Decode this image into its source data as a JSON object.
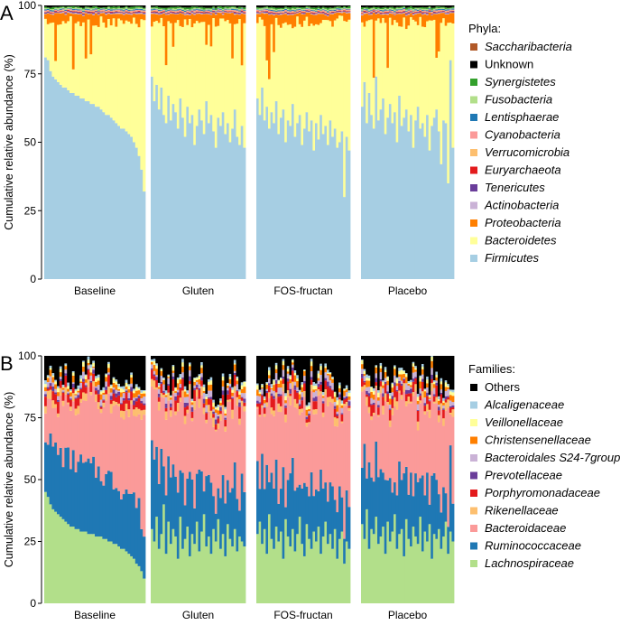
{
  "chart_data": [
    {
      "type": "bar",
      "stacked": true,
      "panel_label": "A",
      "ylabel": "Cumulative relative abundance (%)",
      "ylim": [
        0,
        100
      ],
      "yticks": [
        0,
        25,
        50,
        75,
        100
      ],
      "facets": [
        "Baseline",
        "Gluten",
        "FOS-fructan",
        "Placebo"
      ],
      "legend_title": "Phyla:",
      "legend": [
        {
          "name": "Saccharibacteria",
          "color": "#b15928",
          "italic": true
        },
        {
          "name": "Unknown",
          "color": "#000000",
          "italic": false
        },
        {
          "name": "Synergistetes",
          "color": "#33a02c",
          "italic": true
        },
        {
          "name": "Fusobacteria",
          "color": "#b2df8a",
          "italic": true
        },
        {
          "name": "Lentisphaerae",
          "color": "#1f78b4",
          "italic": true
        },
        {
          "name": "Cyanobacteria",
          "color": "#fb9a99",
          "italic": true
        },
        {
          "name": "Verrucomicrobia",
          "color": "#fdbf6f",
          "italic": true
        },
        {
          "name": "Euryarchaeota",
          "color": "#e31a1c",
          "italic": true
        },
        {
          "name": "Tenericutes",
          "color": "#6a3d9a",
          "italic": true
        },
        {
          "name": "Actinobacteria",
          "color": "#cab2d6",
          "italic": true
        },
        {
          "name": "Proteobacteria",
          "color": "#ff7f00",
          "italic": true
        },
        {
          "name": "Bacteroidetes",
          "color": "#ffff99",
          "italic": true
        },
        {
          "name": "Firmicutes",
          "color": "#a6cee3",
          "italic": true
        }
      ],
      "firmicutes": {
        "Baseline": [
          81,
          80,
          76,
          74,
          73,
          72,
          71,
          70,
          70,
          69,
          68,
          68,
          67,
          67,
          66,
          66,
          65,
          65,
          64,
          64,
          63,
          63,
          62,
          61,
          60,
          60,
          59,
          58,
          57,
          56,
          55,
          55,
          54,
          53,
          52,
          50,
          48,
          45,
          40,
          32
        ],
        "Gluten": [
          74,
          65,
          71,
          62,
          70,
          60,
          57,
          67,
          58,
          64,
          61,
          55,
          66,
          59,
          52,
          63,
          57,
          60,
          49,
          56,
          62,
          58,
          53,
          65,
          57,
          60,
          54,
          48,
          59,
          56,
          61,
          53,
          57,
          50,
          55,
          62,
          52,
          49,
          56,
          48
        ],
        "FOS-fructan": [
          66,
          60,
          70,
          58,
          63,
          55,
          61,
          57,
          65,
          53,
          59,
          62,
          50,
          58,
          56,
          64,
          52,
          57,
          60,
          49,
          55,
          61,
          54,
          58,
          47,
          57,
          51,
          60,
          53,
          56,
          49,
          58,
          52,
          55,
          48,
          50,
          54,
          30,
          52,
          47
        ],
        "Placebo": [
          63,
          72,
          57,
          68,
          60,
          55,
          74,
          58,
          62,
          66,
          53,
          59,
          64,
          57,
          61,
          50,
          67,
          56,
          59,
          62,
          54,
          60,
          48,
          58,
          63,
          55,
          57,
          52,
          60,
          47,
          56,
          59,
          62,
          54,
          42,
          58,
          57,
          35,
          80,
          48
        ]
      }
    },
    {
      "type": "bar",
      "stacked": true,
      "panel_label": "B",
      "ylabel": "Cumulative relative abundance (%)",
      "ylim": [
        0,
        100
      ],
      "yticks": [
        0,
        25,
        50,
        75,
        100
      ],
      "facets": [
        "Baseline",
        "Gluten",
        "FOS-fructan",
        "Placebo"
      ],
      "legend_title": "Families:",
      "legend": [
        {
          "name": "Others",
          "color": "#000000",
          "italic": false
        },
        {
          "name": "Alcaligenaceae",
          "color": "#a6cee3",
          "italic": true
        },
        {
          "name": "Veillonellaceae",
          "color": "#ffff99",
          "italic": true
        },
        {
          "name": "Christensenellaceae",
          "color": "#ff7f00",
          "italic": true
        },
        {
          "name": "Bacteroidales S24-7group",
          "color": "#cab2d6",
          "italic": true
        },
        {
          "name": "Prevotellaceae",
          "color": "#6a3d9a",
          "italic": true
        },
        {
          "name": "Porphyromonadaceae",
          "color": "#e31a1c",
          "italic": true
        },
        {
          "name": "Rikenellaceae",
          "color": "#fdbf6f",
          "italic": true
        },
        {
          "name": "Bacteroidaceae",
          "color": "#fb9a99",
          "italic": true
        },
        {
          "name": "Ruminococcaceae",
          "color": "#1f78b4",
          "italic": true
        },
        {
          "name": "Lachnospiraceae",
          "color": "#b2df8a",
          "italic": true
        }
      ],
      "lachnospiraceae": {
        "Baseline": [
          45,
          43,
          40,
          38,
          37,
          36,
          35,
          34,
          33,
          32,
          31,
          31,
          30,
          30,
          29,
          29,
          29,
          28,
          28,
          28,
          27,
          27,
          27,
          26,
          26,
          25,
          25,
          24,
          24,
          23,
          22,
          22,
          21,
          20,
          19,
          18,
          16,
          15,
          13,
          10
        ],
        "Gluten": [
          30,
          25,
          35,
          22,
          28,
          40,
          20,
          33,
          24,
          30,
          27,
          18,
          35,
          22,
          26,
          31,
          19,
          28,
          24,
          33,
          21,
          29,
          36,
          23,
          27,
          20,
          30,
          25,
          34,
          22,
          28,
          19,
          32,
          26,
          23,
          30,
          21,
          27,
          25,
          23
        ],
        "FOS-fructan": [
          28,
          33,
          24,
          30,
          20,
          36,
          26,
          22,
          31,
          25,
          29,
          18,
          34,
          27,
          23,
          30,
          21,
          28,
          35,
          24,
          19,
          32,
          26,
          22,
          29,
          25,
          31,
          20,
          27,
          33,
          24,
          28,
          22,
          30,
          18,
          26,
          29,
          16,
          25,
          22
        ],
        "Placebo": [
          32,
          26,
          38,
          22,
          30,
          28,
          35,
          24,
          27,
          31,
          20,
          33,
          25,
          29,
          36,
          22,
          28,
          30,
          19,
          34,
          26,
          23,
          31,
          27,
          24,
          35,
          21,
          29,
          25,
          32,
          18,
          28,
          26,
          30,
          22,
          27,
          33,
          20,
          29,
          25
        ]
      }
    }
  ]
}
